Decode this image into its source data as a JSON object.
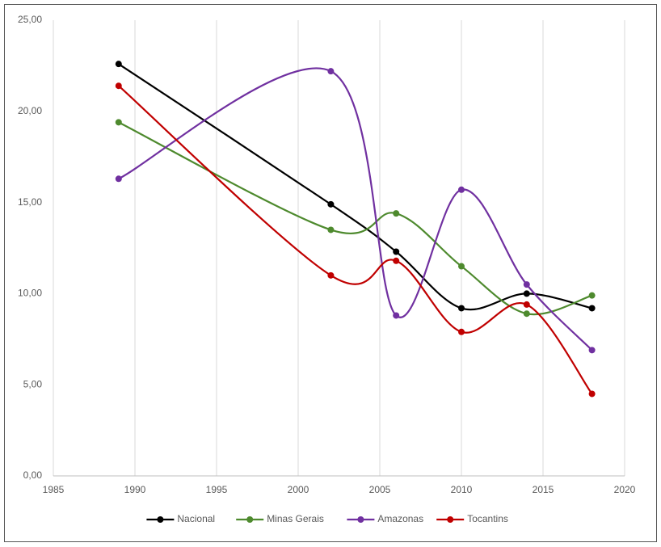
{
  "chart_data": {
    "type": "line",
    "smooth": true,
    "grid_x": true,
    "legend": "bottom",
    "xlim": [
      1985,
      2020
    ],
    "xticks": [
      1985,
      1990,
      1995,
      2000,
      2005,
      2010,
      2015,
      2020
    ],
    "ylim": [
      0,
      25
    ],
    "yticks": [
      {
        "value": 0,
        "label": "0,00"
      },
      {
        "value": 5,
        "label": "5,00"
      },
      {
        "value": 10,
        "label": "10,00"
      },
      {
        "value": 15,
        "label": "15,00"
      },
      {
        "value": 20,
        "label": "20,00"
      },
      {
        "value": 25,
        "label": "25,00"
      }
    ],
    "x": [
      1989,
      2002,
      2006,
      2010,
      2014,
      2018
    ],
    "series": [
      {
        "name": "Nacional",
        "color": "#000000",
        "values": [
          22.6,
          14.9,
          12.3,
          9.2,
          10.0,
          9.2
        ]
      },
      {
        "name": "Minas Gerais",
        "color": "#4e8a2e",
        "values": [
          19.4,
          13.5,
          14.4,
          11.5,
          8.9,
          9.9
        ]
      },
      {
        "name": "Amazonas",
        "color": "#7030a0",
        "values": [
          16.3,
          22.2,
          8.8,
          15.7,
          10.5,
          6.9
        ]
      },
      {
        "name": "Tocantins",
        "color": "#c00000",
        "values": [
          21.4,
          11.0,
          11.8,
          7.9,
          9.4,
          4.5
        ]
      }
    ]
  }
}
